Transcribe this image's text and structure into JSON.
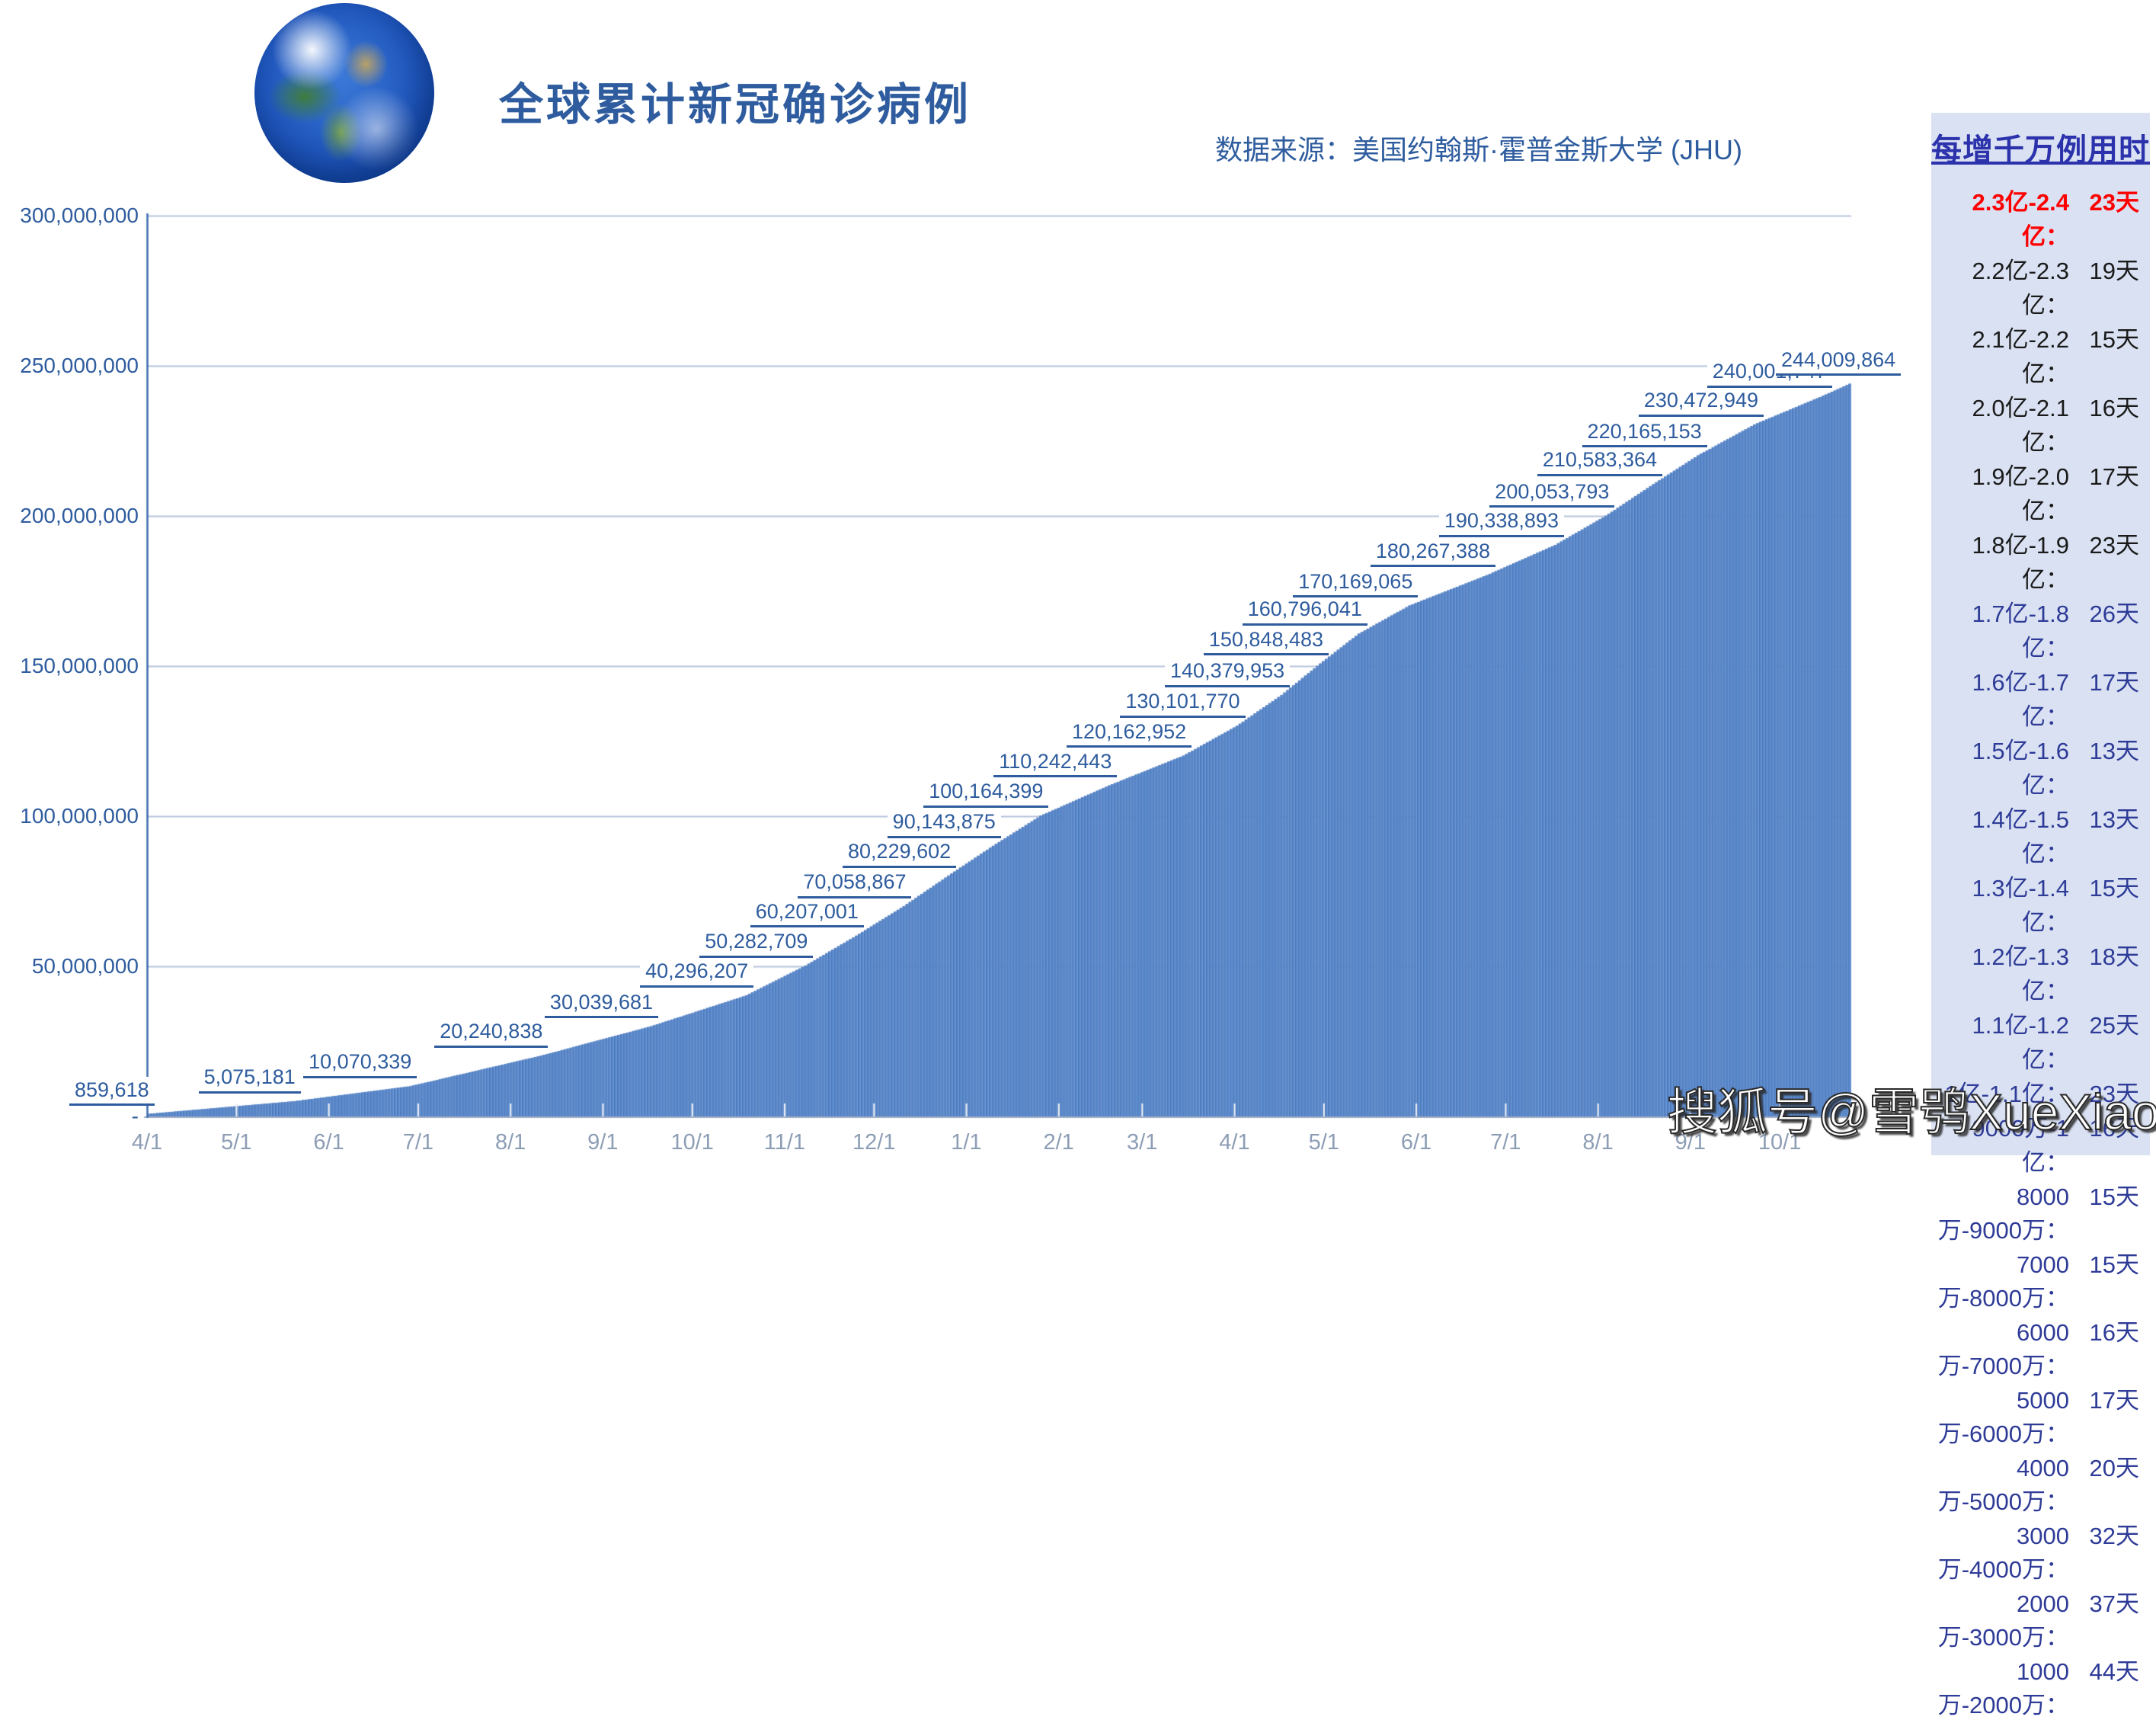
{
  "header": {
    "title": "全球累计新冠确诊病例",
    "source": "数据来源：美国约翰斯·霍普金斯大学 (JHU)",
    "logo_icon": "earth-globe-icon"
  },
  "watermark": "搜狐号@雪鸮XueXiao",
  "sidebar": {
    "title": "每增千万例用时",
    "items": [
      {
        "range": "2.3亿-2.4亿",
        "days": "23天",
        "tone": "red"
      },
      {
        "range": "2.2亿-2.3亿",
        "days": "19天",
        "tone": "black"
      },
      {
        "range": "2.1亿-2.2亿",
        "days": "15天",
        "tone": "black"
      },
      {
        "range": "2.0亿-2.1亿",
        "days": "16天",
        "tone": "black"
      },
      {
        "range": "1.9亿-2.0亿",
        "days": "17天",
        "tone": "black"
      },
      {
        "range": "1.8亿-1.9亿",
        "days": "23天",
        "tone": "black"
      },
      {
        "range": "1.7亿-1.8亿",
        "days": "26天",
        "tone": "navy"
      },
      {
        "range": "1.6亿-1.7亿",
        "days": "17天",
        "tone": "navy"
      },
      {
        "range": "1.5亿-1.6亿",
        "days": "13天",
        "tone": "navy"
      },
      {
        "range": "1.4亿-1.5亿",
        "days": "13天",
        "tone": "navy"
      },
      {
        "range": "1.3亿-1.4亿",
        "days": "15天",
        "tone": "navy"
      },
      {
        "range": "1.2亿-1.3亿",
        "days": "18天",
        "tone": "navy"
      },
      {
        "range": "1.1亿-1.2亿",
        "days": "25天",
        "tone": "navy"
      },
      {
        "range": "1亿-1.1亿",
        "days": "23天",
        "tone": "navy"
      },
      {
        "range": "9000万-1亿",
        "days": "16天",
        "tone": "navy"
      },
      {
        "range": "8000万-9000万",
        "days": "15天",
        "tone": "navy"
      },
      {
        "range": "7000万-8000万",
        "days": "15天",
        "tone": "navy"
      },
      {
        "range": "6000万-7000万",
        "days": "16天",
        "tone": "navy"
      },
      {
        "range": "5000万-6000万",
        "days": "17天",
        "tone": "navy"
      },
      {
        "range": "4000万-5000万",
        "days": "20天",
        "tone": "navy"
      },
      {
        "range": "3000万-4000万",
        "days": "32天",
        "tone": "navy"
      },
      {
        "range": "2000万-3000万",
        "days": "37天",
        "tone": "navy"
      },
      {
        "range": "1000万-2000万",
        "days": "44天",
        "tone": "navy"
      }
    ]
  },
  "chart_data": {
    "type": "bar",
    "title": "全球累计新冠确诊病例",
    "xlabel": "",
    "ylabel": "",
    "ylim": [
      0,
      300000000
    ],
    "grid": true,
    "total_days": 572,
    "y_ticks": [
      {
        "label": "300,000,000",
        "value": 300000000
      },
      {
        "label": "250,000,000",
        "value": 250000000
      },
      {
        "label": "200,000,000",
        "value": 200000000
      },
      {
        "label": "150,000,000",
        "value": 150000000
      },
      {
        "label": "100,000,000",
        "value": 100000000
      },
      {
        "label": "50,000,000",
        "value": 50000000
      },
      {
        "label": "-",
        "value": 0
      }
    ],
    "x_ticks": [
      {
        "label": "4/1",
        "day": 0
      },
      {
        "label": "5/1",
        "day": 30
      },
      {
        "label": "6/1",
        "day": 61
      },
      {
        "label": "7/1",
        "day": 91
      },
      {
        "label": "8/1",
        "day": 122
      },
      {
        "label": "9/1",
        "day": 153
      },
      {
        "label": "10/1",
        "day": 183
      },
      {
        "label": "11/1",
        "day": 214
      },
      {
        "label": "12/1",
        "day": 244
      },
      {
        "label": "1/1",
        "day": 275
      },
      {
        "label": "2/1",
        "day": 306
      },
      {
        "label": "3/1",
        "day": 334
      },
      {
        "label": "4/1",
        "day": 365
      },
      {
        "label": "5/1",
        "day": 395
      },
      {
        "label": "6/1",
        "day": 426
      },
      {
        "label": "7/1",
        "day": 456
      },
      {
        "label": "8/1",
        "day": 487
      },
      {
        "label": "9/1",
        "day": 518
      },
      {
        "label": "10/1",
        "day": 548
      }
    ],
    "milestones": [
      {
        "label": "859,618",
        "value": 859618,
        "day": 0
      },
      {
        "label": "5,075,181",
        "value": 5075181,
        "day": 49
      },
      {
        "label": "10,070,339",
        "value": 10070339,
        "day": 88
      },
      {
        "label": "20,240,838",
        "value": 20240838,
        "day": 132
      },
      {
        "label": "30,039,681",
        "value": 30039681,
        "day": 169
      },
      {
        "label": "40,296,207",
        "value": 40296207,
        "day": 201
      },
      {
        "label": "50,282,709",
        "value": 50282709,
        "day": 221
      },
      {
        "label": "60,207,001",
        "value": 60207001,
        "day": 238
      },
      {
        "label": "70,058,867",
        "value": 70058867,
        "day": 254
      },
      {
        "label": "80,229,602",
        "value": 80229602,
        "day": 269
      },
      {
        "label": "90,143,875",
        "value": 90143875,
        "day": 284
      },
      {
        "label": "100,164,399",
        "value": 100164399,
        "day": 300
      },
      {
        "label": "110,242,443",
        "value": 110242443,
        "day": 323
      },
      {
        "label": "120,162,952",
        "value": 120162952,
        "day": 348
      },
      {
        "label": "130,101,770",
        "value": 130101770,
        "day": 366
      },
      {
        "label": "140,379,953",
        "value": 140379953,
        "day": 381
      },
      {
        "label": "150,848,483",
        "value": 150848483,
        "day": 394
      },
      {
        "label": "160,796,041",
        "value": 160796041,
        "day": 407
      },
      {
        "label": "170,169,065",
        "value": 170169065,
        "day": 424
      },
      {
        "label": "180,267,388",
        "value": 180267388,
        "day": 450
      },
      {
        "label": "190,338,893",
        "value": 190338893,
        "day": 473
      },
      {
        "label": "200,053,793",
        "value": 200053793,
        "day": 490
      },
      {
        "label": "210,583,364",
        "value": 210583364,
        "day": 506
      },
      {
        "label": "220,165,153",
        "value": 220165153,
        "day": 521
      },
      {
        "label": "230,472,949",
        "value": 230472949,
        "day": 540
      },
      {
        "label": "240,001,747",
        "value": 240001747,
        "day": 563,
        "obscured": true
      },
      {
        "label": "244,009,864",
        "value": 244009864,
        "day": 572
      }
    ]
  },
  "colors": {
    "accent": "#2E5C9E",
    "bar_mid": "#5988CB",
    "bar_dark": "#4371B5",
    "bar_light": "#7FA6DC",
    "grid": "#B6C3DB",
    "axis_line": "#9FACC4",
    "y_axis_line": "#3E6CB0",
    "x_label": "#8D9DB5",
    "sidebar_bg": "#D9E1F2",
    "sidebar_title": "#2B32AC",
    "highlight_red": "#FF0000",
    "item_black": "#1A1A1A",
    "item_navy": "#2E3B97"
  }
}
